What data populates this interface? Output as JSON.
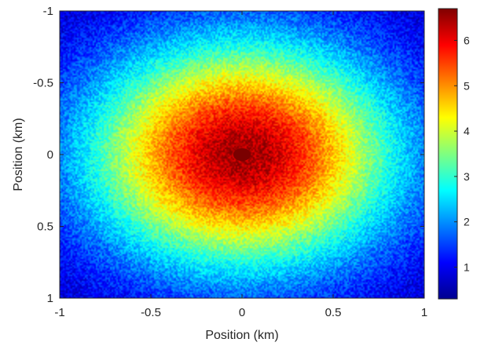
{
  "chart_data": {
    "type": "heatmap",
    "title": "",
    "xlabel": "Position (km)",
    "ylabel": "Position (km)",
    "xlim": [
      -1,
      1
    ],
    "ylim": [
      -1,
      1
    ],
    "y_axis_reversed": true,
    "x_ticks": [
      "-1",
      "-0.5",
      "0",
      "0.5",
      "1"
    ],
    "y_ticks": [
      "-1",
      "-0.5",
      "0",
      "0.5",
      "1"
    ],
    "x_tick_values": [
      -1,
      -0.5,
      0,
      0.5,
      1
    ],
    "y_tick_values": [
      -1,
      -0.5,
      0,
      0.5,
      1
    ],
    "colorbar": {
      "colormap": "jet",
      "range": [
        0.3,
        6.7
      ],
      "tick_values": [
        1,
        2,
        3,
        4,
        5,
        6
      ],
      "tick_labels": [
        "1",
        "2",
        "3",
        "4",
        "5",
        "6"
      ],
      "placement": "right"
    },
    "field": {
      "description": "radially decreasing intensity with noise",
      "peak_value": 6.5,
      "edge_value": 0.6,
      "center": [
        0,
        0
      ],
      "central_spot": {
        "x": 0,
        "y": 0,
        "radius_km": 0.04,
        "color": "#7a0000"
      }
    },
    "grid": false
  }
}
